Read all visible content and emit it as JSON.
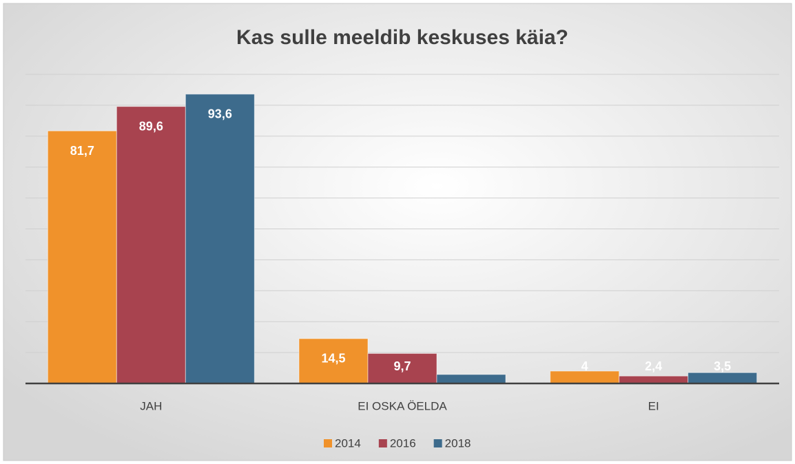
{
  "chart_data": {
    "type": "bar",
    "title": "Kas sulle meeldib keskuses käia?",
    "categories": [
      "JAH",
      "EI OSKA ÖELDA",
      "EI"
    ],
    "series": [
      {
        "name": "2014",
        "color": "#f0922b",
        "values": [
          81.7,
          14.5,
          4
        ],
        "value_labels": [
          "81,7",
          "14,5",
          "4"
        ]
      },
      {
        "name": "2016",
        "color": "#a8434f",
        "values": [
          89.6,
          9.7,
          2.4
        ],
        "value_labels": [
          "89,6",
          "9,7",
          "2,4"
        ]
      },
      {
        "name": "2018",
        "color": "#3d6b8c",
        "values": [
          93.6,
          2.9,
          3.5
        ],
        "value_labels": [
          "93,6",
          null,
          "3,5"
        ]
      }
    ],
    "ylim": [
      0,
      100
    ],
    "yticks": [
      0,
      10,
      20,
      30,
      40,
      50,
      60,
      70,
      80,
      90,
      100
    ],
    "grid": true,
    "legend": "bottom"
  }
}
